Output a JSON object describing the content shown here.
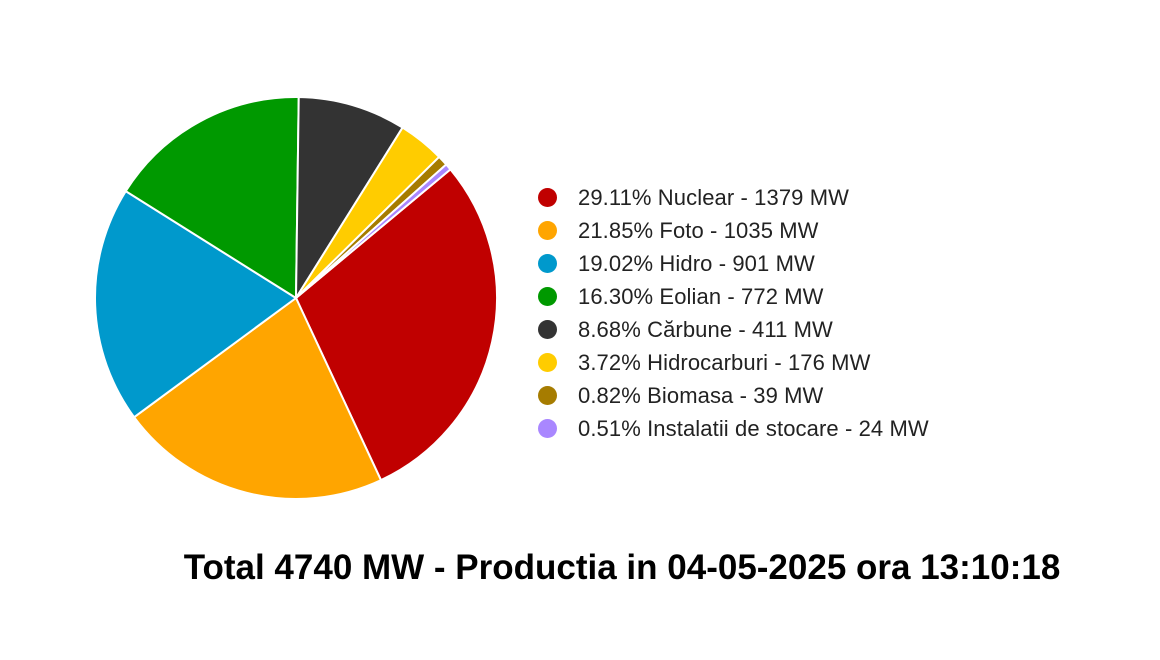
{
  "chart_data": {
    "type": "pie",
    "slices": [
      {
        "label": "29.11% Nuclear - 1379 MW",
        "name": "Nuclear",
        "percent": 29.11,
        "value": 1379,
        "color": "#c00000"
      },
      {
        "label": "21.85% Foto - 1035 MW",
        "name": "Foto",
        "percent": 21.85,
        "value": 1035,
        "color": "#ffa500"
      },
      {
        "label": "19.02% Hidro - 901 MW",
        "name": "Hidro",
        "percent": 19.02,
        "value": 901,
        "color": "#0099cc"
      },
      {
        "label": "16.30% Eolian - 772 MW",
        "name": "Eolian",
        "percent": 16.3,
        "value": 772,
        "color": "#009900"
      },
      {
        "label": "8.68% Cărbune - 411 MW",
        "name": "Cărbune",
        "percent": 8.68,
        "value": 411,
        "color": "#333333"
      },
      {
        "label": "3.72% Hidrocarburi - 176 MW",
        "name": "Hidrocarburi",
        "percent": 3.72,
        "value": 176,
        "color": "#ffcc00"
      },
      {
        "label": "0.82% Biomasa - 39 MW",
        "name": "Biomasa",
        "percent": 0.82,
        "value": 39,
        "color": "#a67c00"
      },
      {
        "label": "0.51% Instalatii de stocare - 24 MW",
        "name": "Instalatii de stocare",
        "percent": 0.51,
        "value": 24,
        "color": "#a987ff"
      }
    ],
    "legend_position": "right",
    "start_angle_deg": -39.8,
    "direction": "clockwise"
  },
  "footer": {
    "title": "Total 4740 MW - Productia in 04-05-2025 ora 13:10:18"
  }
}
